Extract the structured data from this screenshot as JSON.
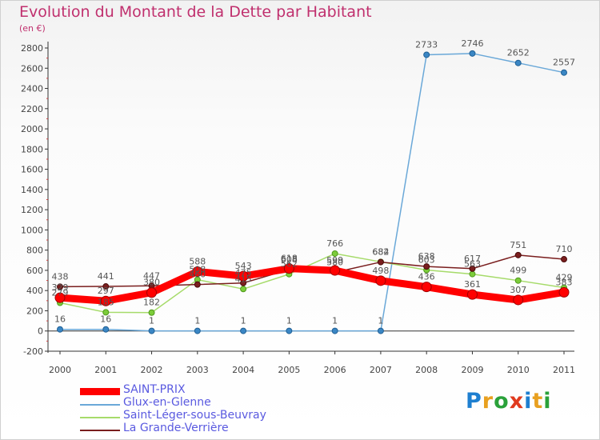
{
  "header": {
    "title": "Evolution du Montant de la Dette par Habitant",
    "unit": "(en €)"
  },
  "logo": {
    "text": "Proxiti",
    "letters": [
      {
        "ch": "P",
        "color": "#1e7fd0"
      },
      {
        "ch": "r",
        "color": "#e8a020"
      },
      {
        "ch": "o",
        "color": "#2aa13a"
      },
      {
        "ch": "x",
        "color": "#e03a1e"
      },
      {
        "ch": "i",
        "color": "#1e7fd0"
      },
      {
        "ch": "t",
        "color": "#e8a020"
      },
      {
        "ch": "i",
        "color": "#2aa13a"
      }
    ]
  },
  "chart_data": {
    "type": "line",
    "title": "Evolution du Montant de la Dette par Habitant",
    "ylabel": "(en €)",
    "xlabel": "",
    "categories": [
      "2000",
      "2001",
      "2002",
      "2003",
      "2004",
      "2005",
      "2006",
      "2007",
      "2008",
      "2009",
      "2010",
      "2011"
    ],
    "ylim": [
      -200,
      2800
    ],
    "yticks": [
      -200,
      0,
      200,
      400,
      600,
      800,
      1000,
      1200,
      1400,
      1600,
      1800,
      2000,
      2200,
      2400,
      2600,
      2800
    ],
    "grid": false,
    "legend_position": "bottom",
    "series": [
      {
        "name": "SAINT-PRIX",
        "color": "#ff0000",
        "values": [
          329,
          297,
          380,
          588,
          543,
          618,
          599,
          498,
          436,
          361,
          307,
          383
        ]
      },
      {
        "name": "Glux-en-Glenne",
        "color": "#6aa8d8",
        "values": [
          16,
          16,
          1,
          1,
          1,
          1,
          1,
          1,
          2733,
          2746,
          2652,
          2557
        ]
      },
      {
        "name": "Saint-Léger-sous-Beuvray",
        "color": "#a6db6a",
        "values": [
          279,
          185,
          182,
          508,
          415,
          562,
          766,
          684,
          603,
          563,
          499,
          429
        ]
      },
      {
        "name": "La Grande-Verrière",
        "color": "#7a1e1e",
        "values": [
          438,
          441,
          447,
          460,
          475,
          608,
          580,
          682,
          638,
          617,
          751,
          710
        ]
      }
    ]
  }
}
